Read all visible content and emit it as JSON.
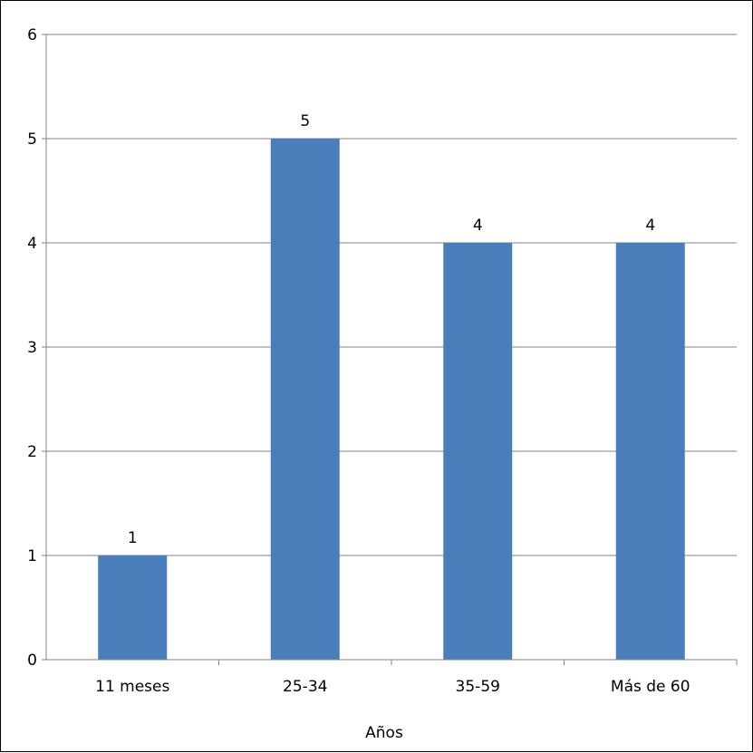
{
  "chart_data": {
    "type": "bar",
    "categories": [
      "11 meses",
      "25-34",
      "35-59",
      "Más de 60"
    ],
    "values": [
      1,
      5,
      4,
      4
    ],
    "data_labels": [
      "1",
      "5",
      "4",
      "4"
    ],
    "title": "",
    "xlabel": "Años",
    "ylabel": "",
    "ylim": [
      0,
      6
    ],
    "yticks": [
      "0",
      "1",
      "2",
      "3",
      "4",
      "5",
      "6"
    ],
    "grid": true,
    "legend": "none",
    "bar_color": "#4a7ebb",
    "grid_color": "#868686"
  }
}
